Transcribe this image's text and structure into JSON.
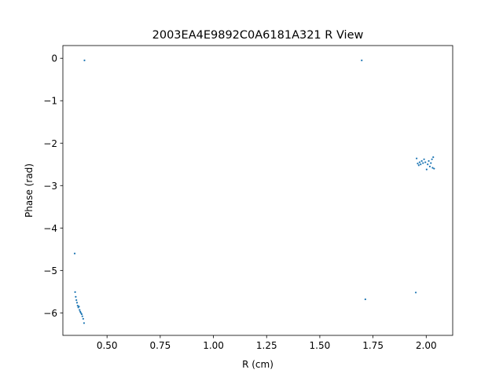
{
  "chart_data": {
    "type": "scatter",
    "title": "2003EA4E9892C0A6181A321 R View",
    "xlabel": "R (cm)",
    "ylabel": "Phase (rad)",
    "xlim": [
      0.2925,
      2.1245
    ],
    "ylim": [
      -6.53,
      0.3
    ],
    "xticks": [
      0.5,
      0.75,
      1.0,
      1.25,
      1.5,
      1.75,
      2.0
    ],
    "xtick_labels": [
      "0.50",
      "0.75",
      "1.00",
      "1.25",
      "1.50",
      "1.75",
      "2.00"
    ],
    "yticks": [
      0,
      -1,
      -2,
      -3,
      -4,
      -5,
      -6
    ],
    "ytick_labels": [
      "0",
      "−1",
      "−2",
      "−3",
      "−4",
      "−5",
      "−6"
    ],
    "grid": false,
    "marker_color": "#1f77b4",
    "points": [
      {
        "x": 0.394,
        "y": -0.05
      },
      {
        "x": 1.697,
        "y": -0.05
      },
      {
        "x": 0.348,
        "y": -4.6
      },
      {
        "x": 0.35,
        "y": -5.51
      },
      {
        "x": 0.353,
        "y": -5.62
      },
      {
        "x": 0.356,
        "y": -5.7
      },
      {
        "x": 0.359,
        "y": -5.76
      },
      {
        "x": 0.362,
        "y": -5.83
      },
      {
        "x": 0.365,
        "y": -5.87
      },
      {
        "x": 0.368,
        "y": -5.85
      },
      {
        "x": 0.371,
        "y": -5.93
      },
      {
        "x": 0.374,
        "y": -5.97
      },
      {
        "x": 0.377,
        "y": -6.0
      },
      {
        "x": 0.381,
        "y": -6.03
      },
      {
        "x": 0.384,
        "y": -6.08
      },
      {
        "x": 0.388,
        "y": -6.14
      },
      {
        "x": 0.392,
        "y": -6.24
      },
      {
        "x": 1.714,
        "y": -5.68
      },
      {
        "x": 1.951,
        "y": -5.52
      },
      {
        "x": 1.955,
        "y": -2.36
      },
      {
        "x": 1.96,
        "y": -2.48
      },
      {
        "x": 1.965,
        "y": -2.52
      },
      {
        "x": 1.969,
        "y": -2.45
      },
      {
        "x": 1.974,
        "y": -2.5
      },
      {
        "x": 1.979,
        "y": -2.42
      },
      {
        "x": 1.985,
        "y": -2.47
      },
      {
        "x": 1.99,
        "y": -2.38
      },
      {
        "x": 1.996,
        "y": -2.45
      },
      {
        "x": 2.002,
        "y": -2.62
      },
      {
        "x": 2.007,
        "y": -2.5
      },
      {
        "x": 2.012,
        "y": -2.42
      },
      {
        "x": 2.017,
        "y": -2.55
      },
      {
        "x": 2.022,
        "y": -2.47
      },
      {
        "x": 2.027,
        "y": -2.38
      },
      {
        "x": 2.03,
        "y": -2.58
      },
      {
        "x": 2.033,
        "y": -2.33
      },
      {
        "x": 2.037,
        "y": -2.6
      }
    ]
  }
}
